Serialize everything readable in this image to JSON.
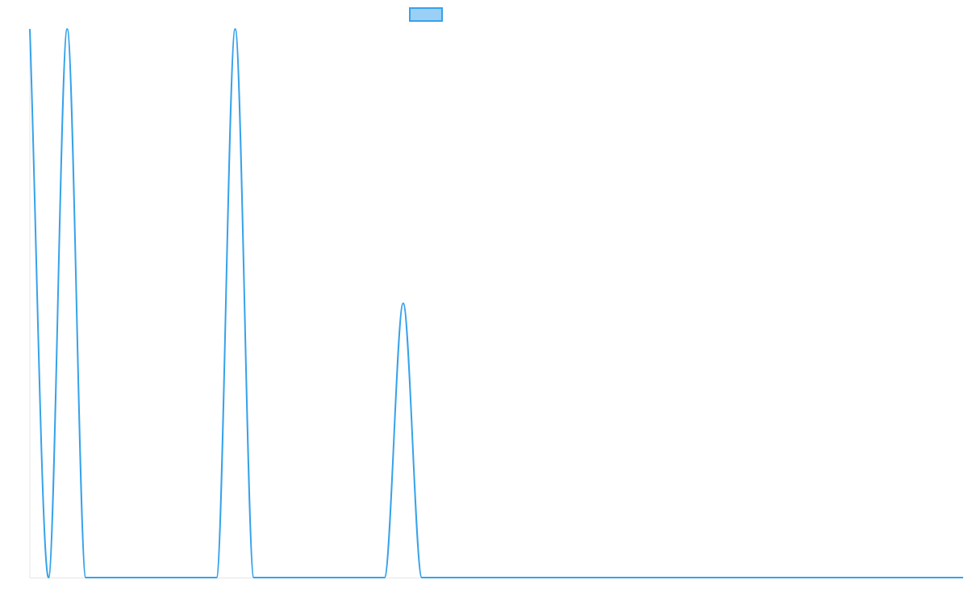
{
  "chart_data": {
    "type": "line",
    "title": "",
    "xlabel": "",
    "ylabel": "",
    "legend": {
      "placement": "top-center",
      "show": true
    },
    "grid": false,
    "xlim": [
      0,
      50
    ],
    "ylim": [
      0,
      1
    ],
    "series": [
      {
        "color": "#36a2eb",
        "fill_color": "#9ad0f5",
        "x": [
          0,
          1,
          2,
          3,
          4,
          5,
          6,
          7,
          8,
          9,
          10,
          11,
          12,
          13,
          14,
          15,
          16,
          17,
          18,
          19,
          20,
          21,
          22,
          23,
          24,
          25,
          26,
          27,
          28,
          29,
          30,
          31,
          32,
          33,
          34,
          35,
          36,
          37,
          38,
          39,
          40,
          41,
          42,
          43,
          44,
          45,
          46,
          47,
          48,
          49,
          50
        ],
        "y": [
          1,
          0,
          1,
          0,
          0,
          0,
          0,
          0,
          0,
          0,
          0,
          1,
          0,
          0,
          0,
          0,
          0,
          0,
          0,
          0,
          0.5,
          0,
          0,
          0,
          0,
          0,
          0,
          0,
          0,
          0,
          0,
          0,
          0,
          0,
          0,
          0,
          0,
          0,
          0,
          0,
          0,
          0,
          0,
          0,
          0,
          0,
          0,
          0,
          0,
          0,
          0
        ]
      }
    ]
  }
}
